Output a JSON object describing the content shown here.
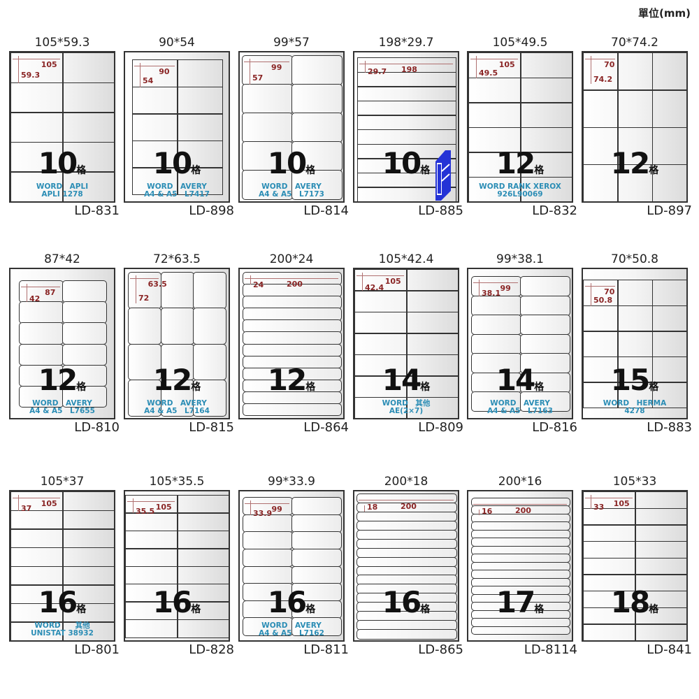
{
  "unit_label": "單位(mm)",
  "count_suffix": "格",
  "colors": {
    "dimension": "#8a2525",
    "brand_text": "#2b8db5",
    "binder": "#2433d6"
  },
  "cards": [
    {
      "title": "105*59.3",
      "code": "LD-831",
      "count": "10",
      "w": "105",
      "h": "59.3",
      "brand1": "WORD　APLI",
      "brand2": "APLI 1278"
    },
    {
      "title": "90*54",
      "code": "LD-898",
      "count": "10",
      "w": "90",
      "h": "54",
      "brand1": "WORD　AVERY",
      "brand2": "A4 & A5　L7417"
    },
    {
      "title": "99*57",
      "code": "LD-814",
      "count": "10",
      "w": "99",
      "h": "57",
      "brand1": "WORD　AVERY",
      "brand2": "A4 & A5　L7173"
    },
    {
      "title": "198*29.7",
      "code": "LD-885",
      "count": "10",
      "w": "198",
      "h": "29.7",
      "brand1": "",
      "brand2": "",
      "icon": "binder-icon"
    },
    {
      "title": "105*49.5",
      "code": "LD-832",
      "count": "12",
      "w": "105",
      "h": "49.5",
      "brand1": "WORD RANK XEROX",
      "brand2": "926L90069"
    },
    {
      "title": "70*74.2",
      "code": "LD-897",
      "count": "12",
      "w": "70",
      "h": "74.2",
      "brand1": "",
      "brand2": ""
    },
    {
      "title": "87*42",
      "code": "LD-810",
      "count": "12",
      "w": "87",
      "h": "42",
      "brand1": "WORD　AVERY",
      "brand2": "A4 & A5　L7655"
    },
    {
      "title": "72*63.5",
      "code": "LD-815",
      "count": "12",
      "w": "63.5",
      "h": "72",
      "brand1": "WORD　AVERY",
      "brand2": "A4 & A5　L7164"
    },
    {
      "title": "200*24",
      "code": "LD-864",
      "count": "12",
      "w": "200",
      "h": "24",
      "brand1": "",
      "brand2": ""
    },
    {
      "title": "105*42.4",
      "code": "LD-809",
      "count": "14",
      "w": "105",
      "h": "42.4",
      "brand1": "WORD　其他",
      "brand2": "AE(2×7)"
    },
    {
      "title": "99*38.1",
      "code": "LD-816",
      "count": "14",
      "w": "99",
      "h": "38.1",
      "brand1": "WORD　AVERY",
      "brand2": "A4 & A5　L7163"
    },
    {
      "title": "70*50.8",
      "code": "LD-883",
      "count": "15",
      "w": "70",
      "h": "50.8",
      "brand1": "WORD　HERMA",
      "brand2": "4278"
    },
    {
      "title": "105*37",
      "code": "LD-801",
      "count": "16",
      "w": "105",
      "h": "37",
      "brand1": "WORD　　其他",
      "brand2": "UNISTAT 38932"
    },
    {
      "title": "105*35.5",
      "code": "LD-828",
      "count": "16",
      "w": "105",
      "h": "35.5",
      "brand1": "",
      "brand2": ""
    },
    {
      "title": "99*33.9",
      "code": "LD-811",
      "count": "16",
      "w": "99",
      "h": "33.9",
      "brand1": "WORD　AVERY",
      "brand2": "A4 & A5　L7162"
    },
    {
      "title": "200*18",
      "code": "LD-865",
      "count": "16",
      "w": "200",
      "h": "18",
      "brand1": "",
      "brand2": ""
    },
    {
      "title": "200*16",
      "code": "LD-8114",
      "count": "17",
      "w": "200",
      "h": "16",
      "brand1": "",
      "brand2": ""
    },
    {
      "title": "105*33",
      "code": "LD-841",
      "count": "18",
      "w": "105",
      "h": "33",
      "brand1": "",
      "brand2": ""
    }
  ]
}
